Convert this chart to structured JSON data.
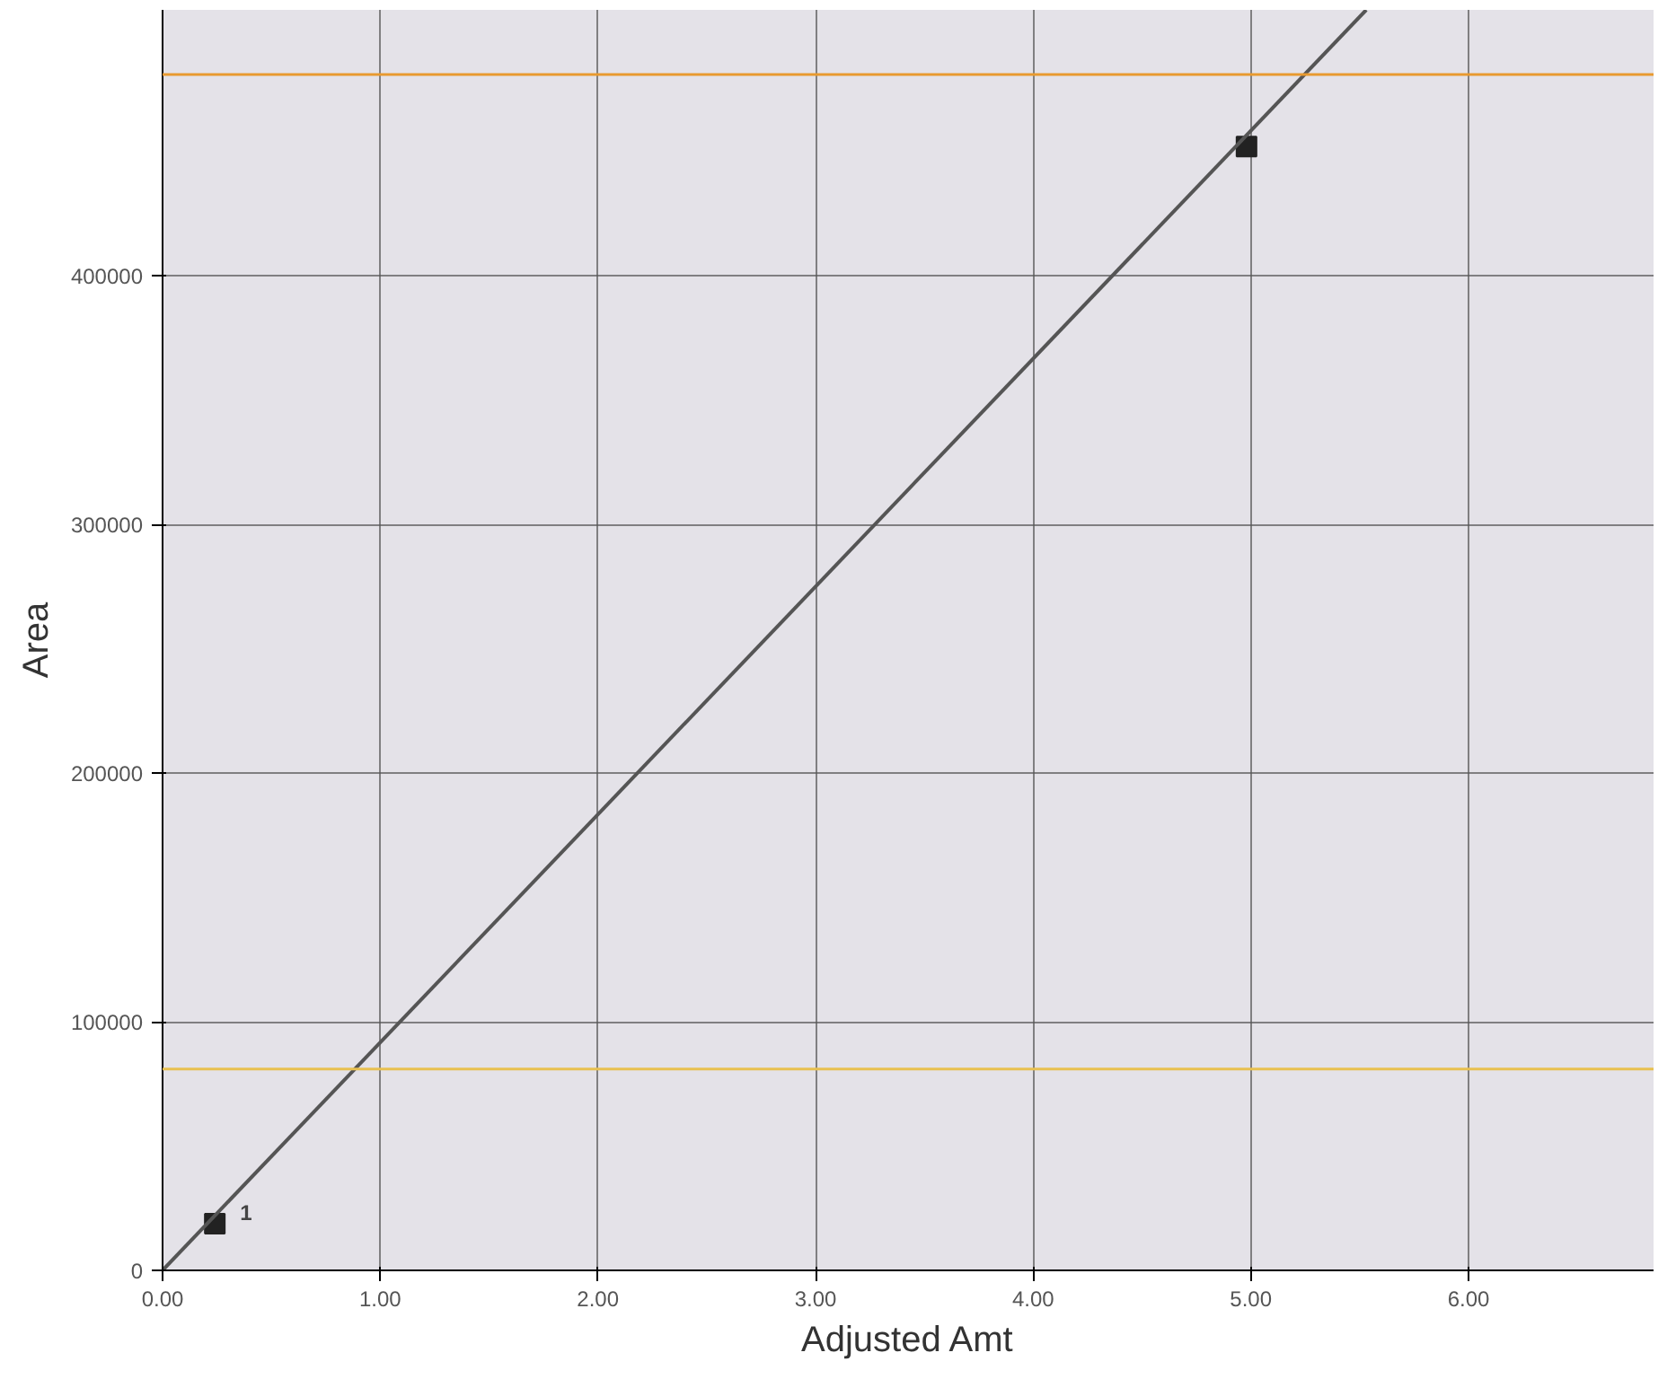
{
  "chart_data": {
    "type": "scatter",
    "xlabel": "Adjusted Amt",
    "ylabel": "Area",
    "xlim": [
      0,
      6.85
    ],
    "ylim": [
      0,
      507000
    ],
    "xticks": [
      {
        "value": 0,
        "label": "0.00"
      },
      {
        "value": 1,
        "label": "1.00"
      },
      {
        "value": 2,
        "label": "2.00"
      },
      {
        "value": 3,
        "label": "3.00"
      },
      {
        "value": 4,
        "label": "4.00"
      },
      {
        "value": 5,
        "label": "5.00"
      },
      {
        "value": 6,
        "label": "6.00"
      }
    ],
    "yticks": [
      0,
      100000,
      200000,
      300000,
      400000
    ],
    "grid": true,
    "series": [
      {
        "marker": "square",
        "color": "#222222",
        "x": [
          0.24,
          4.98
        ],
        "values": [
          18800,
          452000
        ]
      },
      {
        "type": "line",
        "color": "#555555",
        "x": [
          0,
          5.53
        ],
        "values": [
          0,
          507000
        ]
      }
    ],
    "annotations": [
      {
        "text": "1",
        "x": 0.24,
        "y": 18800
      }
    ],
    "ref_lines": [
      {
        "axis": "y",
        "value": 481000,
        "color": "#e89a30"
      },
      {
        "axis": "y",
        "value": 81000,
        "color": "#e8c050"
      }
    ]
  }
}
